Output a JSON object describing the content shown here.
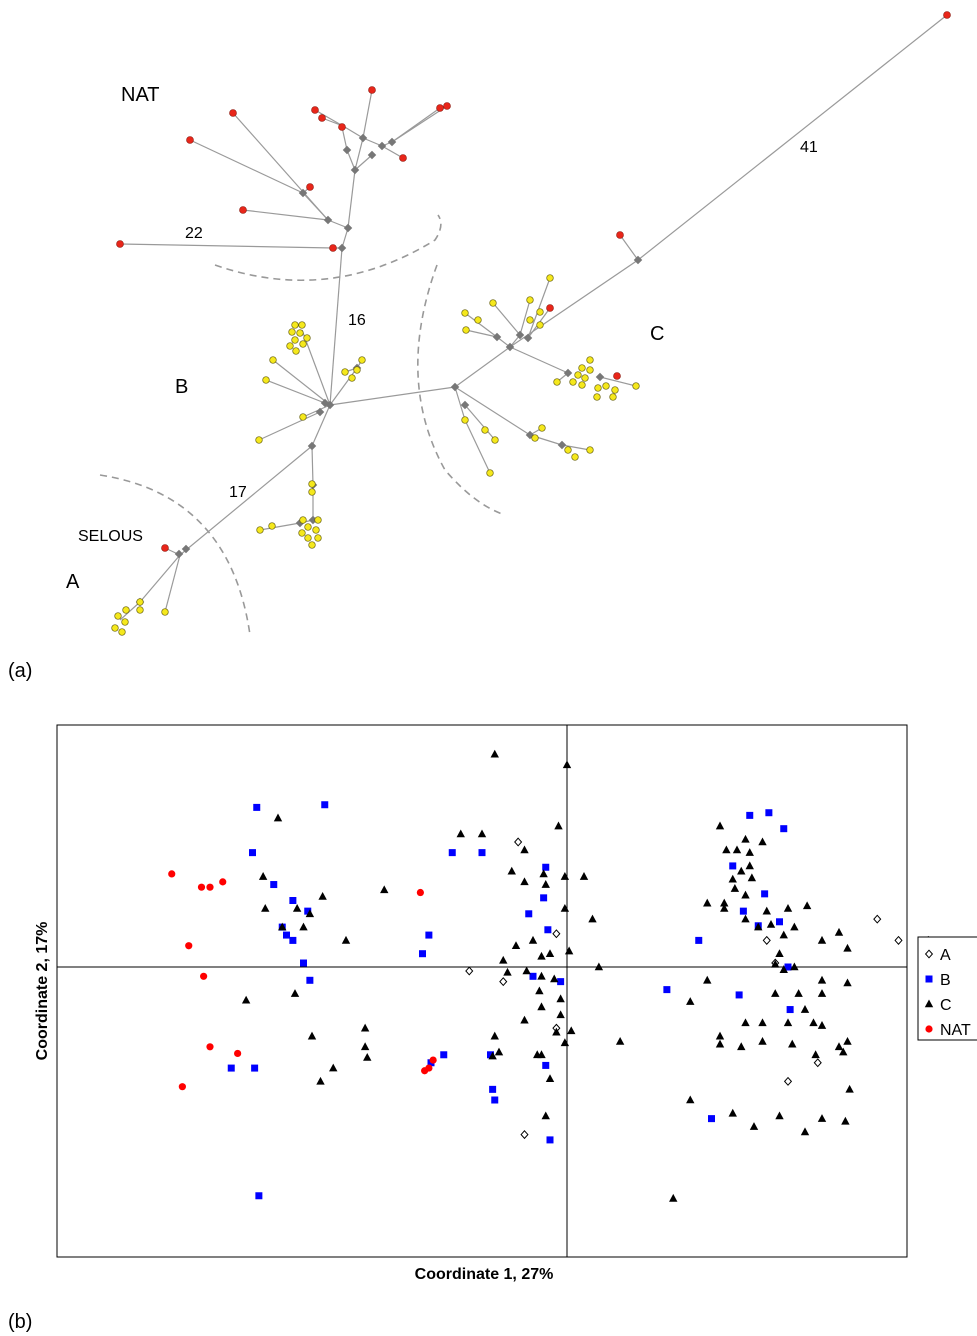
{
  "figure": {
    "panel_a_label": "(a)",
    "panel_b_label": "(b)"
  },
  "network": {
    "cluster_labels": [
      "NAT",
      "B",
      "C",
      "A",
      "SELOUS"
    ],
    "branch_labels": [
      "22",
      "16",
      "41",
      "17"
    ],
    "colors": {
      "red": "#e8261a",
      "yellow": "#f5e81c",
      "node": "#777777",
      "edge": "#9a9a9a",
      "divider": "#999999"
    }
  },
  "chart_data": {
    "type": "scatter",
    "title": "",
    "xlabel": "Coordinate 1, 27%",
    "ylabel": "Coordinate 2, 17%",
    "legend_position": "right",
    "grid": false,
    "xlim": [
      -1.0,
      1.0
    ],
    "ylim": [
      -1.0,
      1.0
    ],
    "series": [
      {
        "name": "A",
        "marker": "diamond-open",
        "color": "#000000",
        "points": [
          [
            -0.115,
            0.47
          ],
          [
            -0.025,
            0.125
          ],
          [
            -0.23,
            -0.015
          ],
          [
            -0.15,
            -0.055
          ],
          [
            -0.025,
            -0.23
          ],
          [
            0.73,
            0.18
          ],
          [
            0.78,
            0.1
          ],
          [
            0.85,
            0.1
          ],
          [
            0.52,
            -0.43
          ],
          [
            0.47,
            0.1
          ],
          [
            0.59,
            -0.36
          ],
          [
            0.49,
            0.015
          ],
          [
            -0.1,
            -0.63
          ]
        ]
      },
      {
        "name": "B",
        "marker": "square",
        "color": "#0000ff",
        "points": [
          [
            -0.73,
            0.6
          ],
          [
            -0.57,
            0.61
          ],
          [
            -0.74,
            0.43
          ],
          [
            -0.2,
            0.43
          ],
          [
            -0.27,
            0.43
          ],
          [
            -0.69,
            0.31
          ],
          [
            -0.645,
            0.25
          ],
          [
            -0.67,
            0.15
          ],
          [
            -0.645,
            0.1
          ],
          [
            -0.62,
            0.015
          ],
          [
            -0.605,
            -0.05
          ],
          [
            -0.61,
            0.21
          ],
          [
            -0.66,
            0.12
          ],
          [
            -0.325,
            0.12
          ],
          [
            -0.34,
            0.05
          ],
          [
            -0.05,
            0.375
          ],
          [
            -0.09,
            0.2
          ],
          [
            -0.045,
            0.14
          ],
          [
            -0.055,
            0.26
          ],
          [
            -0.08,
            -0.035
          ],
          [
            -0.015,
            -0.055
          ],
          [
            -0.32,
            -0.36
          ],
          [
            -0.29,
            -0.33
          ],
          [
            -0.18,
            -0.33
          ],
          [
            -0.175,
            -0.46
          ],
          [
            -0.17,
            -0.5
          ],
          [
            -0.05,
            -0.37
          ],
          [
            -0.04,
            -0.65
          ],
          [
            -0.79,
            -0.38
          ],
          [
            -0.735,
            -0.38
          ],
          [
            -0.725,
            -0.86
          ],
          [
            0.43,
            0.57
          ],
          [
            0.475,
            0.58
          ],
          [
            0.51,
            0.52
          ],
          [
            0.39,
            0.38
          ],
          [
            0.465,
            0.275
          ],
          [
            0.415,
            0.21
          ],
          [
            0.45,
            0.155
          ],
          [
            0.5,
            0.17
          ],
          [
            0.31,
            0.1
          ],
          [
            0.52,
            0.0
          ],
          [
            0.235,
            -0.085
          ],
          [
            0.405,
            -0.105
          ],
          [
            0.525,
            -0.16
          ],
          [
            0.34,
            -0.57
          ]
        ]
      },
      {
        "name": "C",
        "marker": "triangle",
        "color": "#000000",
        "points": [
          [
            -0.68,
            0.56
          ],
          [
            -0.715,
            0.34
          ],
          [
            -0.71,
            0.22
          ],
          [
            -0.67,
            0.15
          ],
          [
            -0.635,
            0.22
          ],
          [
            -0.605,
            0.2
          ],
          [
            -0.62,
            0.15
          ],
          [
            -0.575,
            0.265
          ],
          [
            -0.43,
            0.29
          ],
          [
            -0.52,
            0.1
          ],
          [
            -0.64,
            -0.1
          ],
          [
            -0.755,
            -0.125
          ],
          [
            -0.6,
            -0.26
          ],
          [
            -0.475,
            -0.23
          ],
          [
            -0.475,
            -0.3
          ],
          [
            -0.47,
            -0.34
          ],
          [
            -0.58,
            -0.43
          ],
          [
            -0.55,
            -0.38
          ],
          [
            -0.17,
            0.8
          ],
          [
            -0.0,
            0.76
          ],
          [
            -0.25,
            0.5
          ],
          [
            -0.2,
            0.5
          ],
          [
            -0.02,
            0.53
          ],
          [
            -0.1,
            0.44
          ],
          [
            -0.13,
            0.36
          ],
          [
            -0.1,
            0.32
          ],
          [
            -0.05,
            0.31
          ],
          [
            -0.055,
            0.35
          ],
          [
            -0.005,
            0.34
          ],
          [
            0.04,
            0.34
          ],
          [
            -0.005,
            0.22
          ],
          [
            0.06,
            0.18
          ],
          [
            -0.08,
            0.1
          ],
          [
            -0.12,
            0.08
          ],
          [
            -0.04,
            0.05
          ],
          [
            -0.06,
            0.04
          ],
          [
            0.005,
            0.06
          ],
          [
            -0.15,
            0.025
          ],
          [
            0.075,
            0.0
          ],
          [
            -0.095,
            -0.015
          ],
          [
            -0.14,
            -0.02
          ],
          [
            -0.06,
            -0.035
          ],
          [
            -0.03,
            -0.045
          ],
          [
            -0.065,
            -0.09
          ],
          [
            -0.015,
            -0.12
          ],
          [
            -0.06,
            -0.15
          ],
          [
            -0.015,
            -0.18
          ],
          [
            -0.1,
            -0.2
          ],
          [
            -0.025,
            -0.245
          ],
          [
            -0.005,
            -0.285
          ],
          [
            -0.17,
            -0.26
          ],
          [
            -0.175,
            -0.335
          ],
          [
            -0.16,
            -0.32
          ],
          [
            -0.07,
            -0.33
          ],
          [
            -0.06,
            -0.33
          ],
          [
            0.01,
            -0.24
          ],
          [
            -0.04,
            -0.42
          ],
          [
            -0.05,
            -0.56
          ],
          [
            0.125,
            -0.28
          ],
          [
            0.36,
            0.53
          ],
          [
            0.42,
            0.48
          ],
          [
            0.375,
            0.44
          ],
          [
            0.46,
            0.47
          ],
          [
            0.4,
            0.44
          ],
          [
            0.43,
            0.43
          ],
          [
            0.43,
            0.38
          ],
          [
            0.41,
            0.36
          ],
          [
            0.435,
            0.335
          ],
          [
            0.39,
            0.33
          ],
          [
            0.395,
            0.295
          ],
          [
            0.42,
            0.27
          ],
          [
            0.33,
            0.24
          ],
          [
            0.37,
            0.24
          ],
          [
            0.37,
            0.22
          ],
          [
            0.42,
            0.18
          ],
          [
            0.47,
            0.21
          ],
          [
            0.52,
            0.22
          ],
          [
            0.48,
            0.16
          ],
          [
            0.45,
            0.15
          ],
          [
            0.51,
            0.12
          ],
          [
            0.535,
            0.15
          ],
          [
            0.565,
            0.23
          ],
          [
            0.5,
            0.05
          ],
          [
            0.49,
            0.01
          ],
          [
            0.51,
            -0.01
          ],
          [
            0.535,
            0.0
          ],
          [
            0.49,
            -0.1
          ],
          [
            0.545,
            -0.1
          ],
          [
            0.6,
            -0.05
          ],
          [
            0.56,
            -0.16
          ],
          [
            0.6,
            -0.1
          ],
          [
            0.66,
            0.07
          ],
          [
            0.66,
            -0.06
          ],
          [
            0.6,
            0.1
          ],
          [
            0.64,
            0.13
          ],
          [
            0.33,
            -0.05
          ],
          [
            0.29,
            -0.13
          ],
          [
            0.42,
            -0.21
          ],
          [
            0.46,
            -0.21
          ],
          [
            0.52,
            -0.21
          ],
          [
            0.58,
            -0.21
          ],
          [
            0.36,
            -0.26
          ],
          [
            0.36,
            -0.29
          ],
          [
            0.41,
            -0.3
          ],
          [
            0.46,
            -0.28
          ],
          [
            0.53,
            -0.29
          ],
          [
            0.6,
            -0.22
          ],
          [
            0.64,
            -0.3
          ],
          [
            0.65,
            -0.32
          ],
          [
            0.66,
            -0.28
          ],
          [
            0.585,
            -0.33
          ],
          [
            0.29,
            -0.5
          ],
          [
            0.39,
            -0.55
          ],
          [
            0.44,
            -0.6
          ],
          [
            0.5,
            -0.56
          ],
          [
            0.56,
            -0.62
          ],
          [
            0.6,
            -0.57
          ],
          [
            0.655,
            -0.58
          ],
          [
            0.665,
            -0.46
          ],
          [
            0.25,
            -0.87
          ]
        ]
      },
      {
        "name": "NAT",
        "marker": "circle",
        "color": "#ff0000",
        "points": [
          [
            -0.93,
            0.35
          ],
          [
            -0.84,
            0.3
          ],
          [
            -0.86,
            0.3
          ],
          [
            -0.81,
            0.32
          ],
          [
            -0.89,
            0.08
          ],
          [
            -0.855,
            -0.035
          ],
          [
            -0.84,
            -0.3
          ],
          [
            -0.775,
            -0.325
          ],
          [
            -0.905,
            -0.45
          ],
          [
            -0.345,
            0.28
          ],
          [
            -0.315,
            -0.35
          ],
          [
            -0.325,
            -0.38
          ],
          [
            -0.335,
            -0.39
          ]
        ]
      }
    ]
  }
}
